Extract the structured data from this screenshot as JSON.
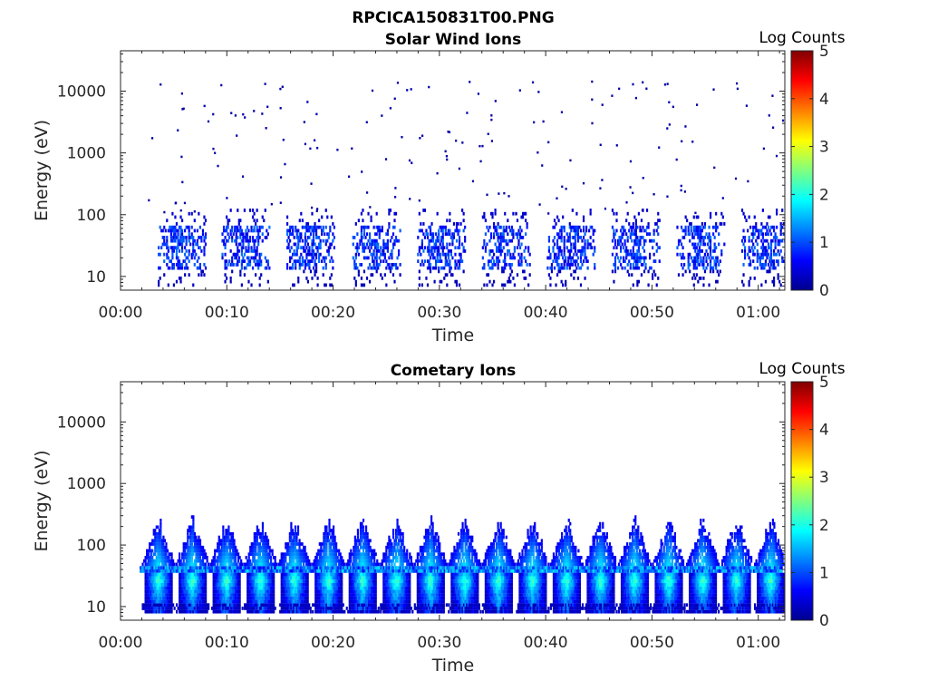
{
  "figure": {
    "title": "RPCICA150831T00.PNG"
  },
  "chart_data": [
    {
      "type": "heatmap",
      "title": "Solar Wind Ions",
      "xlabel": "Time",
      "ylabel": "Energy (eV)",
      "x_tick_labels": [
        "00:00",
        "00:10",
        "00:20",
        "00:30",
        "00:40",
        "00:50",
        "01:00"
      ],
      "x_ticks_min": [
        0,
        10,
        20,
        30,
        40,
        50,
        60
      ],
      "xlim_min": [
        0,
        62.5
      ],
      "y_scale": "log",
      "y_tick_labels": [
        "10",
        "100",
        "1000",
        "10000"
      ],
      "y_ticks": [
        10,
        100,
        1000,
        10000
      ],
      "ylim": [
        6,
        45000
      ],
      "colorbar": {
        "label": "Log Counts",
        "ticks": [
          "0",
          "1",
          "2",
          "3",
          "4",
          "5"
        ],
        "range": [
          0,
          5
        ],
        "colormap": "jet"
      },
      "sweep_start_min": [
        3.5,
        9.5,
        15.6,
        21.8,
        27.9,
        34.0,
        40.1,
        46.2,
        52.3,
        58.4
      ],
      "sweep_duration_min": 4.5,
      "core_energy_range_eV": [
        12,
        60
      ],
      "peak_log_counts": 1.2,
      "sparse_energy_range_eV": [
        100,
        15000
      ],
      "sparse_log_counts": 0.2
    },
    {
      "type": "heatmap",
      "title": "Cometary Ions",
      "xlabel": "Time",
      "ylabel": "Energy (eV)",
      "x_tick_labels": [
        "00:00",
        "00:10",
        "00:20",
        "00:30",
        "00:40",
        "00:50",
        "01:00"
      ],
      "x_ticks_min": [
        0,
        10,
        20,
        30,
        40,
        50,
        60
      ],
      "xlim_min": [
        0,
        62.5
      ],
      "y_scale": "log",
      "y_tick_labels": [
        "10",
        "100",
        "1000",
        "10000"
      ],
      "y_ticks": [
        10,
        100,
        1000,
        10000
      ],
      "ylim": [
        6,
        45000
      ],
      "colorbar": {
        "label": "Log Counts",
        "ticks": [
          "0",
          "1",
          "2",
          "3",
          "4",
          "5"
        ],
        "range": [
          0,
          5
        ],
        "colormap": "jet"
      },
      "sweep_start_min": [
        2.0,
        5.2,
        8.4,
        11.6,
        14.8,
        18.0,
        21.2,
        24.4,
        27.6,
        30.8,
        34.0,
        37.2,
        40.4,
        43.6,
        46.8,
        50.0,
        53.2,
        56.4,
        59.6
      ],
      "sweep_duration_min": 3.0,
      "band_energy_range_eV": [
        34,
        44
      ],
      "peak_energy_eV": 25,
      "peak_log_counts": 2.3,
      "max_energy_eV": 330,
      "min_energy_eV": 7
    }
  ]
}
